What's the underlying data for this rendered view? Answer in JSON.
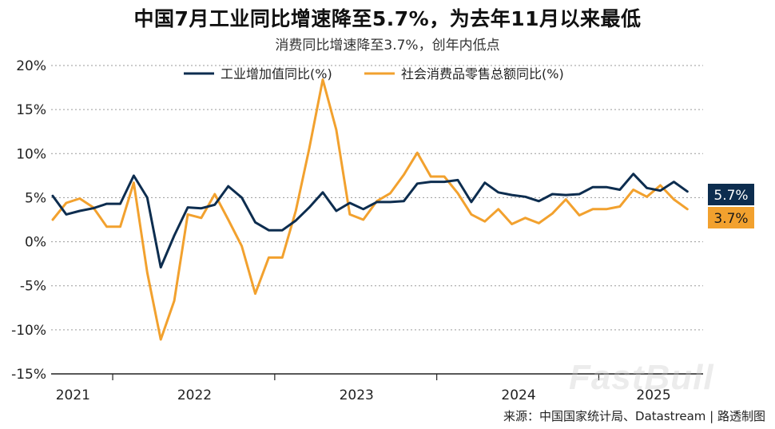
{
  "header": {
    "title": "中国7月工业同比增速降至5.7%，为去年11月以来最低",
    "subtitle": "消费同比增速降至3.7%，创年内低点"
  },
  "footer": {
    "source": "来源：中国国家统计局、Datastream | 路透制图"
  },
  "watermark": {
    "text": "FastBull"
  },
  "chart_data": {
    "type": "line",
    "ylim": [
      -15,
      20
    ],
    "yticks": [
      20,
      15,
      10,
      5,
      0,
      -5,
      -10,
      -15
    ],
    "ytick_labels": [
      "20%",
      "15%",
      "10%",
      "5%",
      "0%",
      "-5%",
      "-10%",
      "-15%"
    ],
    "xticks": [
      "2021",
      "2022",
      "2023",
      "2024",
      "2025"
    ],
    "grid": true,
    "legend_position": "top",
    "series": [
      {
        "name": "工业增加值同比(%)",
        "color": "#0d2d4f",
        "end_label": "5.7%",
        "values": [
          5.2,
          3.1,
          3.5,
          3.8,
          4.3,
          4.3,
          7.5,
          5.0,
          -2.9,
          0.7,
          3.9,
          3.8,
          4.2,
          6.3,
          5.0,
          2.2,
          1.3,
          1.3,
          2.4,
          3.9,
          5.6,
          3.5,
          4.4,
          3.7,
          4.5,
          4.5,
          4.6,
          6.6,
          6.8,
          6.8,
          7.0,
          4.5,
          6.7,
          5.6,
          5.3,
          5.1,
          4.6,
          5.4,
          5.3,
          5.4,
          6.2,
          6.2,
          5.9,
          7.7,
          6.1,
          5.8,
          6.8,
          5.7
        ]
      },
      {
        "name": "社会消费品零售总额同比(%)",
        "color": "#f2a12e",
        "end_label": "3.7%",
        "values": [
          2.5,
          4.4,
          4.9,
          3.9,
          1.7,
          1.7,
          6.7,
          -3.5,
          -11.1,
          -6.7,
          3.1,
          2.7,
          5.4,
          2.5,
          -0.5,
          -5.9,
          -1.8,
          -1.8,
          3.5,
          10.6,
          18.4,
          12.7,
          3.1,
          2.5,
          4.6,
          5.5,
          7.6,
          10.1,
          7.4,
          7.4,
          5.5,
          3.1,
          2.3,
          3.7,
          2.0,
          2.7,
          2.1,
          3.2,
          4.8,
          3.0,
          3.7,
          3.7,
          4.0,
          5.9,
          5.1,
          6.4,
          4.8,
          3.7
        ]
      }
    ]
  }
}
